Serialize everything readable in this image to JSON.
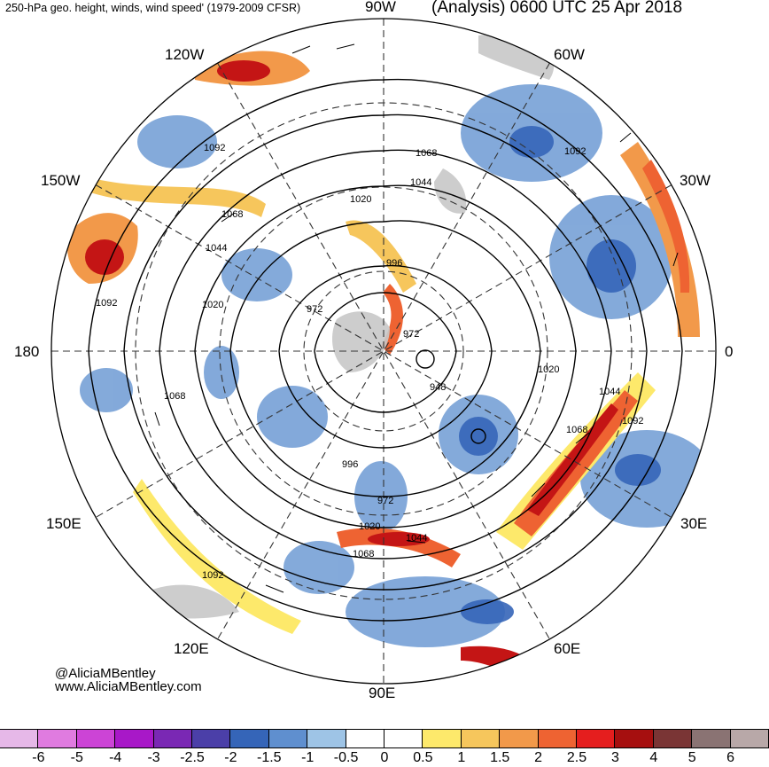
{
  "header": {
    "title_left": "250-hPa geo. height, winds, wind speed' (1979-2009 CFSR)",
    "title_right": "(Analysis) 0600 UTC 25 Apr 2018"
  },
  "longitudes": {
    "top": "90W",
    "upper_left": "120W",
    "upper_right": "60W",
    "left_upper": "150W",
    "right_upper": "30W",
    "left": "180",
    "right": "0",
    "left_lower": "150E",
    "right_lower": "30E",
    "lower_left": "120E",
    "lower_right": "60E",
    "bottom": "90E"
  },
  "credit": {
    "handle": "@AliciaMBentley",
    "site": "www.AliciaMBentley.com"
  },
  "contour_labels": [
    "1092",
    "1068",
    "1044",
    "1020",
    "996",
    "972",
    "1020",
    "1044",
    "1068",
    "1092",
    "1068",
    "1092",
    "948",
    "996",
    "972",
    "1020",
    "1044",
    "1068",
    "1092",
    "1092",
    "1068",
    "1044",
    "1020",
    "972"
  ],
  "colorbar": {
    "labels": [
      "-6",
      "-5",
      "-4",
      "-3",
      "-2.5",
      "-2",
      "-1.5",
      "-1",
      "-0.5",
      "0",
      "0.5",
      "1",
      "1.5",
      "2",
      "2.5",
      "3",
      "4",
      "5",
      "6"
    ],
    "colors": [
      "#e6b8e8",
      "#e07be0",
      "#cc44d6",
      "#a818c8",
      "#7a28b4",
      "#4b3fa8",
      "#3565b8",
      "#5f8fcf",
      "#9ec4e6",
      "#ffffff",
      "#ffffff",
      "#fde96b",
      "#f6c65c",
      "#f2994a",
      "#ee6332",
      "#e51e1e",
      "#a60f0f",
      "#7a3535",
      "#8a7373",
      "#b8a8a8"
    ]
  }
}
